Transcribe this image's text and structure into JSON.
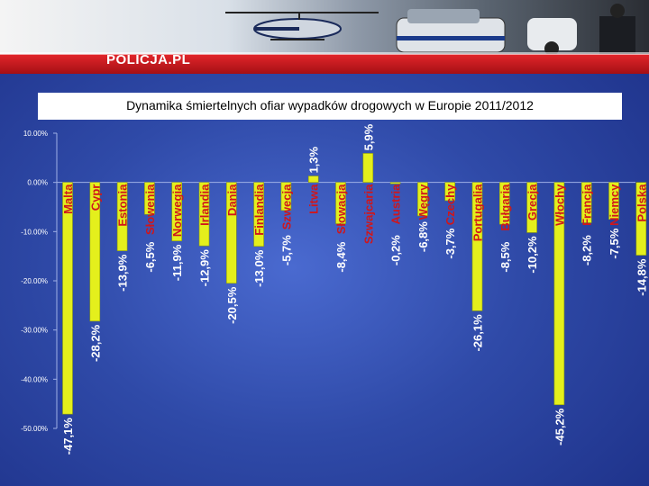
{
  "header": {
    "logo_text": "POLICJA.PL"
  },
  "colors": {
    "bar": "#e4ef1c",
    "label_red": "#d0161b",
    "background": "#2f4aa8"
  },
  "chart_data": {
    "type": "bar",
    "title": "Dynamika śmiertelnych ofiar wypadków drogowych w Europie 2011/2012",
    "categories": [
      "Malta",
      "Cypr",
      "Estonia",
      "Słowenia",
      "Norwegia",
      "Irlandia",
      "Dania",
      "Finlandia",
      "Szwecja",
      "Litwa",
      "Słowacja",
      "Szwajcaria",
      "Austria",
      "Węgry",
      "Czechy",
      "Portugalia",
      "Bułgaria",
      "Grecja",
      "Włochy",
      "Francja",
      "Niemcy",
      "Polska"
    ],
    "values": [
      -47.1,
      -28.2,
      -13.9,
      -6.5,
      -11.9,
      -12.9,
      -20.5,
      -13.0,
      -5.7,
      1.3,
      -8.4,
      5.9,
      -0.2,
      -6.8,
      -3.7,
      -26.1,
      -8.5,
      -10.2,
      -45.2,
      -8.2,
      -7.5,
      -14.8
    ],
    "data_labels": [
      "-47,1%",
      "-28,2%",
      "-13,9%",
      "-6,5%",
      "-11,9%",
      "-12,9%",
      "-20,5%",
      "-13,0%",
      "-5,7%",
      "1,3%",
      "-8,4%",
      "5,9%",
      "-0,2%",
      "-6,8%",
      "-3,7%",
      "-26,1%",
      "-8,5%",
      "-10,2%",
      "-45,2%",
      "-8,2%",
      "-7,5%",
      "-14,8%"
    ],
    "ylim": [
      -50,
      10
    ],
    "yticks": [
      10,
      0,
      -10,
      -20,
      -30,
      -40,
      -50
    ],
    "ytick_labels": [
      "10.00%",
      "0.00%",
      "-10.00%",
      "-20.00%",
      "-30.00%",
      "-40.00%",
      "-50.00%"
    ],
    "grid": false,
    "legend": "none"
  }
}
